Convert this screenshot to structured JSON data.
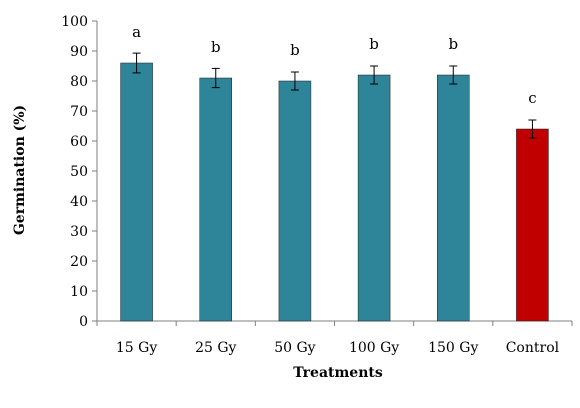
{
  "chart_data": {
    "type": "bar",
    "title": "",
    "xlabel": "Treatments",
    "ylabel": "Germination (%)",
    "ylim": [
      0,
      100
    ],
    "yticks": [
      0,
      10,
      20,
      30,
      40,
      50,
      60,
      70,
      80,
      90,
      100
    ],
    "categories": [
      "15 Gy",
      "25 Gy",
      "50 Gy",
      "100 Gy",
      "150 Gy",
      "Control"
    ],
    "values": [
      86,
      81,
      80,
      82,
      82,
      64
    ],
    "errors": [
      3.3,
      3.2,
      3.0,
      3.0,
      3.0,
      3.0
    ],
    "significance": [
      "a",
      "b",
      "b",
      "b",
      "b",
      "c"
    ],
    "colors": [
      "#2e8499",
      "#2e8499",
      "#2e8499",
      "#2e8499",
      "#2e8499",
      "#c00000"
    ],
    "grid": false,
    "legend": "none"
  }
}
